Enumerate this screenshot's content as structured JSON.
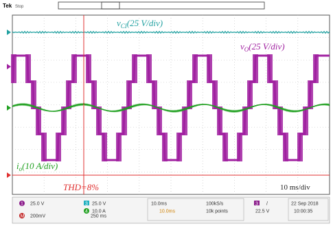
{
  "header": {
    "brand": "Tek",
    "status": "Stop"
  },
  "traces": {
    "capacitor_voltage": {
      "symbol": "v",
      "subscript": "CI",
      "scale": "(25 V/div)"
    },
    "output_voltage": {
      "symbol": "v",
      "subscript": "O",
      "scale": "(25 V/div)"
    },
    "output_current": {
      "symbol": "i",
      "subscript": "o",
      "scale": "(10 A/div)"
    }
  },
  "annotations": {
    "thd": "THD=8%",
    "timebase": "10 ms/div"
  },
  "status_bar": {
    "ch1": {
      "id": "1",
      "scale": "25.0 V"
    },
    "ch3": {
      "id": "3",
      "scale": "25.0 V"
    },
    "ch4": {
      "id": "4",
      "scale": "10.0 A"
    },
    "math": {
      "id": "M",
      "scale": "200mV",
      "time": "250 ms"
    },
    "horizontal": {
      "time": "10.0ms",
      "rate": "100kS/s",
      "position": "10.0ms",
      "points": "10k points"
    },
    "trigger": {
      "id": "3",
      "slope": "/",
      "level": "22.5 V"
    },
    "date": "22 Sep 2018",
    "time": "10:00:35"
  }
}
